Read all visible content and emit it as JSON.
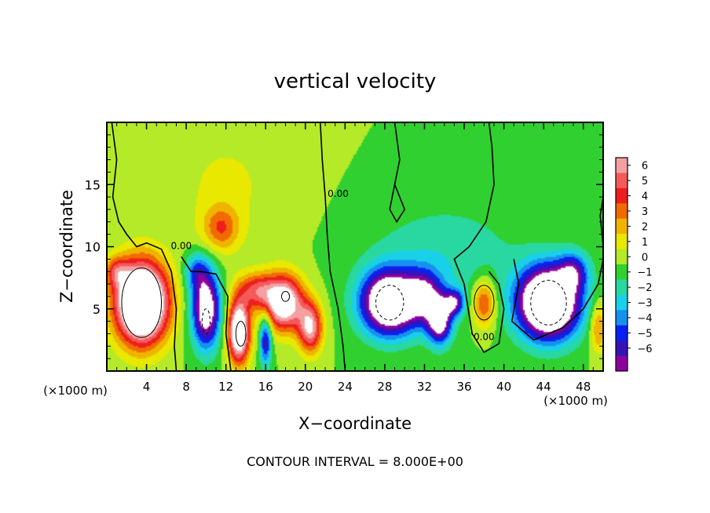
{
  "chart_data": {
    "type": "heatmap",
    "title": "vertical velocity",
    "xlabel": "X−coordinate",
    "ylabel": "Z−coordinate",
    "x_unit_left": "(×1000 m)",
    "x_unit_right": "(×1000 m)",
    "footer": "CONTOUR INTERVAL = 8.000E+00",
    "xlim": [
      0,
      50
    ],
    "ylim": [
      0,
      20
    ],
    "xticks": [
      {
        "v": 4,
        "label": "4"
      },
      {
        "v": 8,
        "label": "8"
      },
      {
        "v": 12,
        "label": "12"
      },
      {
        "v": 16,
        "label": "16"
      },
      {
        "v": 20,
        "label": "20"
      },
      {
        "v": 24,
        "label": "24"
      },
      {
        "v": 28,
        "label": "28"
      },
      {
        "v": 32,
        "label": "32"
      },
      {
        "v": 36,
        "label": "36"
      },
      {
        "v": 40,
        "label": "40"
      },
      {
        "v": 44,
        "label": "44"
      },
      {
        "v": 48,
        "label": "48"
      }
    ],
    "yticks": [
      {
        "v": 5,
        "label": "5"
      },
      {
        "v": 10,
        "label": "10"
      },
      {
        "v": 15,
        "label": "15"
      }
    ],
    "colorbar": {
      "range": [
        -6,
        6
      ],
      "ticks": [
        "6",
        "5",
        "4",
        "3",
        "2",
        "1",
        "0",
        "−1",
        "−2",
        "−3",
        "−4",
        "−5",
        "−6"
      ],
      "colors": [
        "#f4a0a0",
        "#f45a5a",
        "#ee1e1e",
        "#f06a00",
        "#f0b400",
        "#e8e800",
        "#b4ea28",
        "#30d030",
        "#28d8a0",
        "#18d0e8",
        "#1890f0",
        "#0a20f0",
        "#3414b8",
        "#8c00a0"
      ]
    },
    "contour_labels": [
      {
        "text": "0.00",
        "x": 7.5,
        "z": 9.8
      },
      {
        "text": "0.00",
        "x": 23.3,
        "z": 14.0
      },
      {
        "text": "0.00",
        "x": 38.0,
        "z": 2.5
      }
    ],
    "features": [
      {
        "kind": "updraft",
        "x": 3.5,
        "z": 5.5,
        "peak": 12
      },
      {
        "kind": "downdraft",
        "x": 10.0,
        "z": 5.0,
        "peak": -8
      },
      {
        "kind": "updraft",
        "x": 13.5,
        "z": 3.5,
        "peak": 10
      },
      {
        "kind": "updraft",
        "x": 17.5,
        "z": 5.5,
        "peak": 8
      },
      {
        "kind": "updraft",
        "x": 14.5,
        "z": 6.5,
        "peak": 5
      },
      {
        "kind": "downdraft",
        "x": 28.5,
        "z": 5.5,
        "peak": -10
      },
      {
        "kind": "downdraft",
        "x": 33.5,
        "z": 5.0,
        "peak": -8
      },
      {
        "kind": "updraft",
        "x": 38.0,
        "z": 5.5,
        "peak": 4
      },
      {
        "kind": "downdraft",
        "x": 44.5,
        "z": 5.5,
        "peak": -12
      },
      {
        "kind": "updraft",
        "x": 11.5,
        "z": 11.5,
        "peak": 3
      }
    ]
  }
}
